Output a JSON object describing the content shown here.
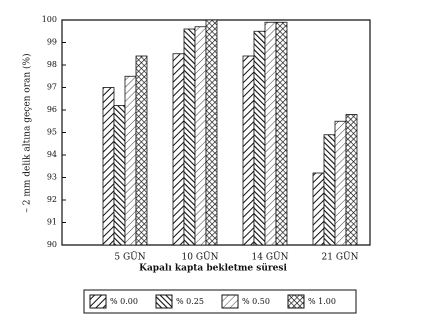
{
  "chart_data": {
    "type": "bar",
    "xlabel": "Kapalı kapta bekletme süresi",
    "ylabel": "– 2 mm delik altına geçen oran (%)",
    "categories": [
      "5 GÜN",
      "10 GÜN",
      "14 GÜN",
      "21 GÜN"
    ],
    "series": [
      {
        "name": "% 0.00",
        "color": "#111111",
        "values": [
          97.0,
          98.5,
          98.4,
          93.2
        ]
      },
      {
        "name": "% 0.25",
        "color": "#111111",
        "values": [
          96.2,
          99.6,
          99.5,
          94.9
        ]
      },
      {
        "name": "% 0.50",
        "color": "#111111",
        "values": [
          97.5,
          99.7,
          99.9,
          95.5
        ]
      },
      {
        "name": "% 1.00",
        "color": "#111111",
        "values": [
          98.4,
          100,
          99.9,
          95.8
        ]
      }
    ],
    "ylim": [
      90,
      100
    ],
    "yticks": [
      90,
      91,
      92,
      93,
      94,
      95,
      96,
      97,
      98,
      99,
      100
    ],
    "legend": "bottom"
  }
}
